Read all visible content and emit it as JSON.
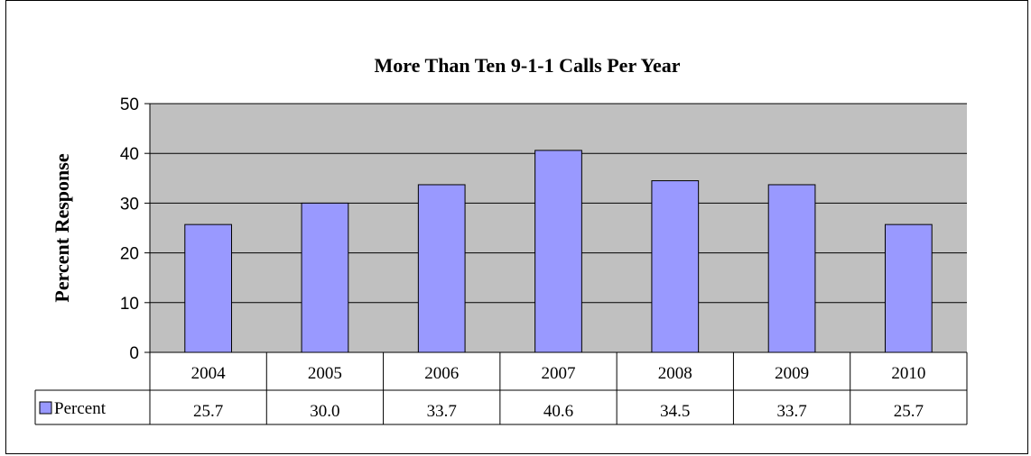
{
  "chart_data": {
    "type": "bar",
    "title": "More Than Ten 9-1-1 Calls Per Year",
    "xlabel": "",
    "ylabel": "Percent Response",
    "categories": [
      "2004",
      "2005",
      "2006",
      "2007",
      "2008",
      "2009",
      "2010"
    ],
    "series": [
      {
        "name": "Percent",
        "values": [
          25.7,
          30.0,
          33.7,
          40.6,
          34.5,
          33.7,
          25.7
        ],
        "display_values": [
          "25.7",
          "30.0",
          "33.7",
          "40.6",
          "34.5",
          "33.7",
          "25.7"
        ],
        "color": "#9999ff"
      }
    ],
    "ylim": [
      0,
      50
    ],
    "yticks": [
      0,
      10,
      20,
      30,
      40,
      50
    ],
    "grid": true,
    "data_table": true,
    "plot_background": "#c0c0c0"
  }
}
